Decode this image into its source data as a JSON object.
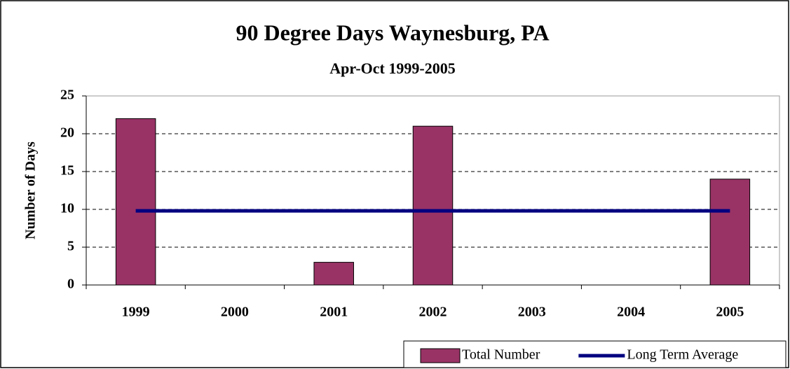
{
  "chart_data": {
    "type": "bar",
    "title": "90 Degree Days Waynesburg, PA",
    "subtitle": "Apr-Oct 1999-2005",
    "y_label": "Number of Days",
    "categories": [
      "1999",
      "2000",
      "2001",
      "2002",
      "2003",
      "2004",
      "2005"
    ],
    "series": [
      {
        "name": "Total Number",
        "type": "bar",
        "color": "#993366",
        "values": [
          22,
          0,
          3,
          21,
          0,
          0,
          14
        ]
      },
      {
        "name": "Long Term Average",
        "type": "line",
        "color": "#000080",
        "values": [
          9.8,
          9.8,
          9.8,
          9.8,
          9.8,
          9.8,
          9.8
        ]
      }
    ],
    "ylim": [
      0,
      25
    ],
    "yticks": [
      0,
      5,
      10,
      15,
      20,
      25
    ],
    "grid": true,
    "legend": "bottom-right"
  }
}
